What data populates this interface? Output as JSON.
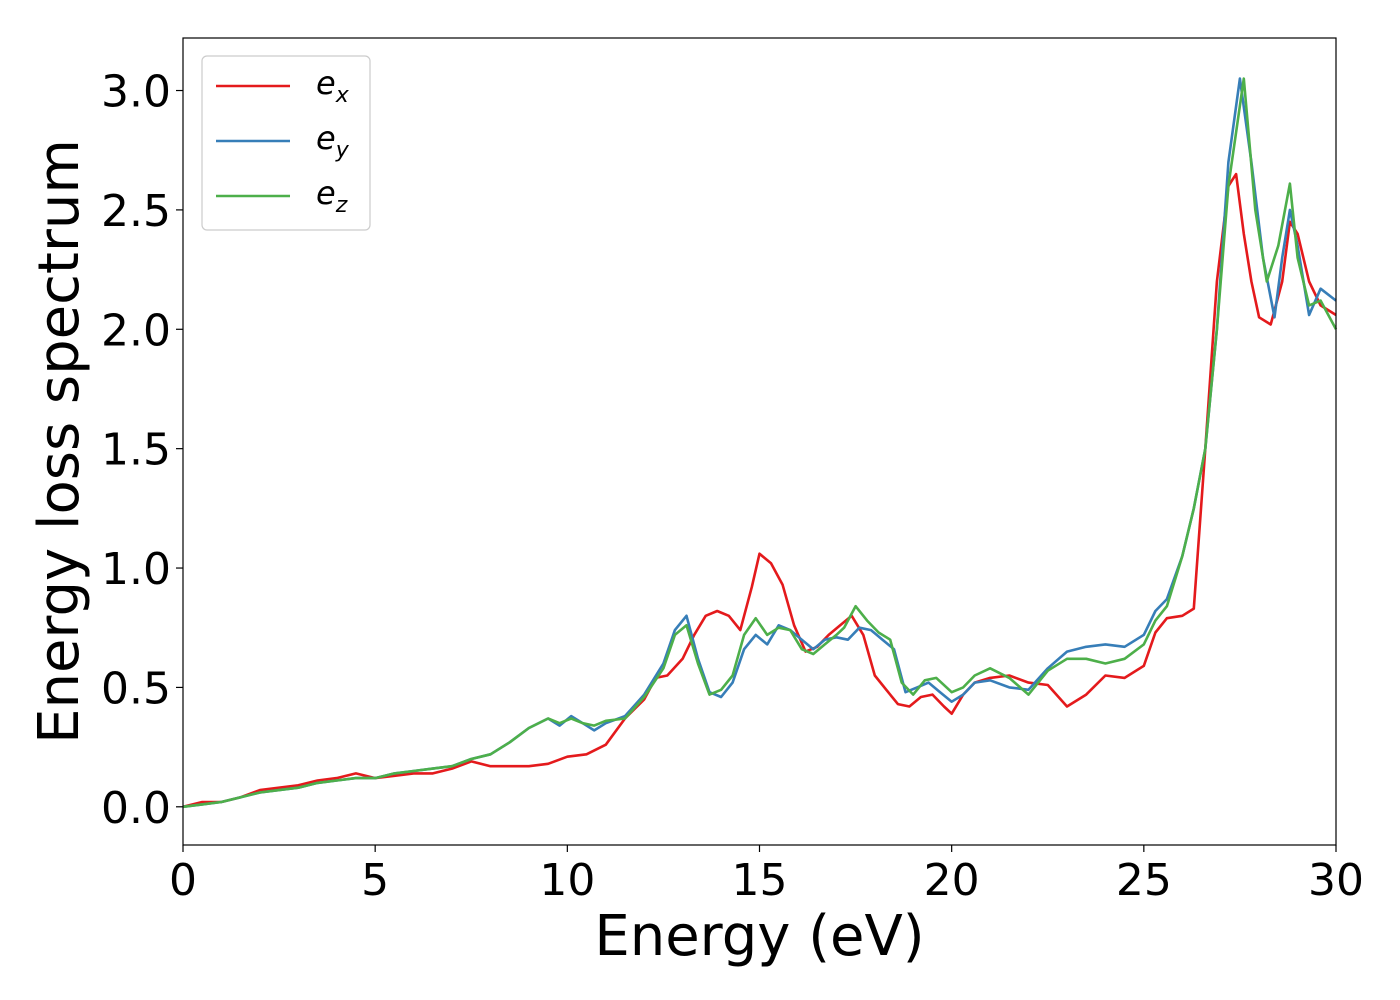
{
  "chart_data": {
    "type": "line",
    "xlabel": "Energy (eV)",
    "ylabel": "Energy loss spectrum",
    "xlim": [
      0,
      30
    ],
    "ylim": [
      -0.16,
      3.22
    ],
    "xticks": [
      0,
      5,
      10,
      15,
      20,
      25,
      30
    ],
    "yticks": [
      0.0,
      0.5,
      1.0,
      1.5,
      2.0,
      2.5,
      3.0
    ],
    "xtick_labels": [
      "0",
      "5",
      "10",
      "15",
      "20",
      "25",
      "30"
    ],
    "ytick_labels": [
      "0.0",
      "0.5",
      "1.0",
      "1.5",
      "2.0",
      "2.5",
      "3.0"
    ],
    "grid": false,
    "legend_position": "top-left",
    "series": [
      {
        "name": "e_x",
        "label_main": "e",
        "label_sub": "x",
        "color": "#e41a1c",
        "x": [
          0,
          0.5,
          1,
          1.5,
          2,
          2.5,
          3,
          3.5,
          4,
          4.5,
          5,
          5.5,
          6,
          6.5,
          7,
          7.5,
          8,
          8.5,
          9,
          9.5,
          10,
          10.5,
          11,
          11.5,
          12,
          12.3,
          12.6,
          13,
          13.3,
          13.6,
          13.9,
          14.2,
          14.5,
          14.8,
          15,
          15.3,
          15.6,
          15.9,
          16.2,
          16.5,
          16.8,
          17.1,
          17.4,
          17.7,
          18,
          18.3,
          18.6,
          18.9,
          19.2,
          19.5,
          19.8,
          20,
          20.3,
          20.6,
          21,
          21.5,
          22,
          22.5,
          23,
          23.5,
          24,
          24.5,
          25,
          25.3,
          25.6,
          26,
          26.3,
          26.6,
          26.9,
          27.2,
          27.4,
          27.6,
          27.8,
          28,
          28.3,
          28.6,
          28.8,
          29,
          29.3,
          29.6,
          30
        ],
        "y": [
          0.0,
          0.02,
          0.02,
          0.04,
          0.07,
          0.08,
          0.09,
          0.11,
          0.12,
          0.14,
          0.12,
          0.13,
          0.14,
          0.14,
          0.16,
          0.19,
          0.17,
          0.17,
          0.17,
          0.18,
          0.21,
          0.22,
          0.26,
          0.37,
          0.45,
          0.54,
          0.55,
          0.62,
          0.72,
          0.8,
          0.82,
          0.8,
          0.74,
          0.92,
          1.06,
          1.02,
          0.93,
          0.76,
          0.65,
          0.67,
          0.72,
          0.76,
          0.8,
          0.72,
          0.55,
          0.49,
          0.43,
          0.42,
          0.46,
          0.47,
          0.42,
          0.39,
          0.47,
          0.52,
          0.54,
          0.55,
          0.52,
          0.51,
          0.42,
          0.47,
          0.55,
          0.54,
          0.59,
          0.73,
          0.79,
          0.8,
          0.83,
          1.5,
          2.2,
          2.6,
          2.65,
          2.4,
          2.2,
          2.05,
          2.02,
          2.2,
          2.45,
          2.4,
          2.2,
          2.1,
          2.06
        ]
      },
      {
        "name": "e_y",
        "label_main": "e",
        "label_sub": "y",
        "color": "#377eb8",
        "x": [
          0,
          0.5,
          1,
          1.5,
          2,
          2.5,
          3,
          3.5,
          4,
          4.5,
          5,
          5.5,
          6,
          6.5,
          7,
          7.5,
          8,
          8.5,
          9,
          9.5,
          9.8,
          10.1,
          10.4,
          10.7,
          11,
          11.5,
          12,
          12.5,
          12.8,
          13.1,
          13.4,
          13.7,
          14,
          14.3,
          14.6,
          14.9,
          15.2,
          15.5,
          15.8,
          16.1,
          16.4,
          16.7,
          17,
          17.3,
          17.6,
          17.9,
          18.2,
          18.5,
          18.8,
          19.1,
          19.4,
          19.7,
          20,
          20.3,
          20.6,
          21,
          21.5,
          22,
          22.5,
          23,
          23.5,
          24,
          24.5,
          25,
          25.3,
          25.6,
          26,
          26.3,
          26.6,
          26.9,
          27.2,
          27.5,
          27.8,
          28.1,
          28.4,
          28.6,
          28.8,
          29,
          29.3,
          29.6,
          30
        ],
        "y": [
          0.0,
          0.01,
          0.02,
          0.04,
          0.06,
          0.07,
          0.08,
          0.1,
          0.11,
          0.12,
          0.12,
          0.14,
          0.15,
          0.16,
          0.17,
          0.2,
          0.22,
          0.27,
          0.33,
          0.37,
          0.34,
          0.38,
          0.35,
          0.32,
          0.35,
          0.38,
          0.47,
          0.6,
          0.74,
          0.8,
          0.62,
          0.48,
          0.46,
          0.52,
          0.66,
          0.72,
          0.68,
          0.76,
          0.74,
          0.7,
          0.66,
          0.7,
          0.71,
          0.7,
          0.75,
          0.74,
          0.7,
          0.66,
          0.48,
          0.5,
          0.52,
          0.48,
          0.44,
          0.47,
          0.52,
          0.53,
          0.5,
          0.49,
          0.58,
          0.65,
          0.67,
          0.68,
          0.67,
          0.72,
          0.82,
          0.87,
          1.05,
          1.25,
          1.5,
          2.0,
          2.7,
          3.05,
          2.7,
          2.3,
          2.05,
          2.3,
          2.5,
          2.35,
          2.06,
          2.17,
          2.12
        ]
      },
      {
        "name": "e_z",
        "label_main": "e",
        "label_sub": "z",
        "color": "#4daf4a",
        "x": [
          0,
          0.5,
          1,
          1.5,
          2,
          2.5,
          3,
          3.5,
          4,
          4.5,
          5,
          5.5,
          6,
          6.5,
          7,
          7.5,
          8,
          8.5,
          9,
          9.5,
          9.8,
          10.1,
          10.4,
          10.7,
          11,
          11.5,
          12,
          12.5,
          12.8,
          13.1,
          13.4,
          13.7,
          14,
          14.3,
          14.6,
          14.9,
          15.2,
          15.5,
          15.8,
          16.1,
          16.4,
          16.7,
          17,
          17.2,
          17.5,
          17.8,
          18.1,
          18.4,
          18.7,
          19,
          19.3,
          19.6,
          20,
          20.3,
          20.6,
          21,
          21.5,
          22,
          22.5,
          23,
          23.5,
          24,
          24.5,
          25,
          25.3,
          25.6,
          26,
          26.3,
          26.6,
          26.9,
          27.2,
          27.6,
          27.9,
          28.2,
          28.5,
          28.8,
          29,
          29.3,
          29.6,
          30
        ],
        "y": [
          0.0,
          0.01,
          0.02,
          0.04,
          0.06,
          0.07,
          0.08,
          0.1,
          0.11,
          0.12,
          0.12,
          0.14,
          0.15,
          0.16,
          0.17,
          0.2,
          0.22,
          0.27,
          0.33,
          0.37,
          0.35,
          0.37,
          0.35,
          0.34,
          0.36,
          0.37,
          0.46,
          0.58,
          0.72,
          0.76,
          0.6,
          0.47,
          0.49,
          0.55,
          0.72,
          0.79,
          0.72,
          0.75,
          0.74,
          0.66,
          0.64,
          0.68,
          0.72,
          0.75,
          0.84,
          0.78,
          0.73,
          0.7,
          0.52,
          0.47,
          0.53,
          0.54,
          0.48,
          0.5,
          0.55,
          0.58,
          0.54,
          0.47,
          0.57,
          0.62,
          0.62,
          0.6,
          0.62,
          0.68,
          0.78,
          0.84,
          1.05,
          1.25,
          1.5,
          2.0,
          2.6,
          3.05,
          2.5,
          2.2,
          2.35,
          2.61,
          2.3,
          2.1,
          2.12,
          2.0
        ]
      }
    ]
  }
}
